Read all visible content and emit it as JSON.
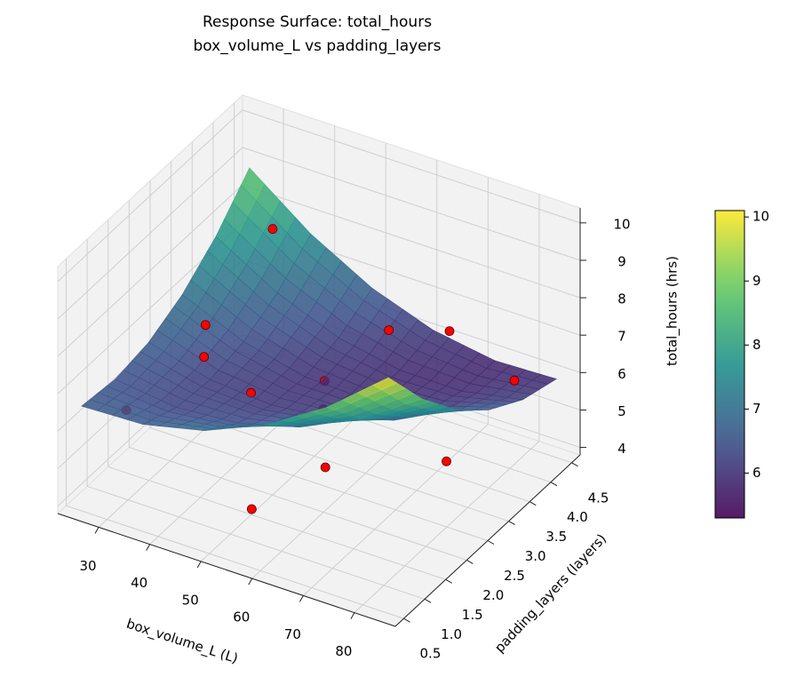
{
  "chart_data": {
    "type": "surface3d",
    "title": "Response Surface: total_hours",
    "subtitle": "box_volume_L vs padding_layers",
    "xlabel": "box_volume_L (L)",
    "ylabel": "padding_layers (layers)",
    "zlabel": "total_hours (hrs)",
    "xlim": [
      22,
      88
    ],
    "ylim": [
      0.3,
      4.7
    ],
    "zlim": [
      3.8,
      10.4
    ],
    "xticks": [
      30,
      40,
      50,
      60,
      70,
      80
    ],
    "yticks": [
      0.5,
      {
        "value": 1,
        "label": "1.0"
      },
      1.5,
      {
        "value": 2,
        "label": "2.0"
      },
      2.5,
      {
        "value": 3,
        "label": "3.0"
      },
      3.5,
      {
        "value": 4,
        "label": "4.0"
      },
      4.5
    ],
    "zticks": [
      4,
      5,
      6,
      7,
      8,
      9,
      10
    ],
    "grid": true,
    "colormap": "viridis",
    "clim": [
      5.3,
      10.1
    ],
    "colorbar_ticks": [
      6,
      7,
      8,
      9,
      10
    ],
    "surface": {
      "x": [
        25,
        37,
        49,
        61,
        73,
        85
      ],
      "y": [
        0.5,
        1.3,
        2.1,
        2.9,
        3.7,
        4.5
      ],
      "z": [
        [
          6.6,
          6.66,
          7.04,
          7.74,
          8.76,
          10.1
        ],
        [
          6.48,
          6.28,
          6.41,
          6.85,
          7.62,
          8.7
        ],
        [
          6.64,
          6.19,
          6.06,
          6.24,
          6.75,
          7.58
        ],
        [
          7.08,
          6.37,
          5.98,
          5.92,
          6.17,
          6.74
        ],
        [
          7.8,
          6.84,
          6.19,
          5.87,
          5.86,
          6.18
        ],
        [
          8.8,
          7.58,
          6.68,
          6.1,
          5.84,
          5.9
        ]
      ]
    },
    "points": {
      "color": "#ff0000",
      "x": [
        28,
        32,
        35,
        32,
        45,
        52,
        55,
        58,
        71.5,
        85,
        62,
        55,
        75
      ],
      "y": [
        1.2,
        2.6,
        2.2,
        4.2,
        2.1,
        3.0,
        2.6,
        3.8,
        3.6,
        3.5,
        1.8,
        0.9,
        3.1
      ],
      "z": [
        5.9,
        6.9,
        6.6,
        7.8,
        6.2,
        5.9,
        5.7,
        6.7,
        7.5,
        6.9,
        5.3,
        4.8,
        4.7
      ]
    }
  }
}
